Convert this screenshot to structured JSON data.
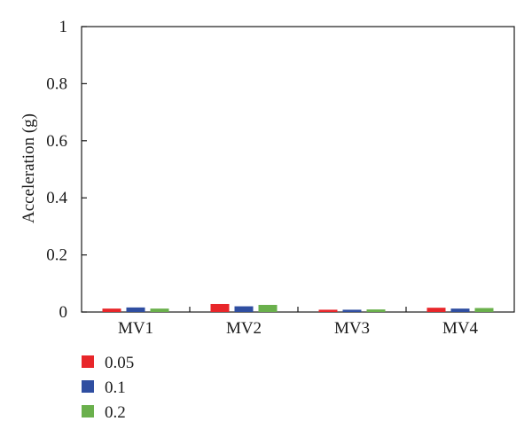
{
  "chart_data": {
    "type": "bar",
    "title": "",
    "xlabel": "",
    "ylabel": "Acceleration (g)",
    "ylim": [
      0,
      1
    ],
    "yticks": [
      0,
      0.2,
      0.4,
      0.6,
      0.8,
      1
    ],
    "ytick_labels": [
      "0",
      "0.2",
      "0.4",
      "0.6",
      "0.8",
      "1"
    ],
    "categories": [
      "MV1",
      "MV2",
      "MV3",
      "MV4"
    ],
    "series": [
      {
        "name": "0.05",
        "color": "#e8262a",
        "values": [
          0.012,
          0.028,
          0.008,
          0.015
        ]
      },
      {
        "name": "0.1",
        "color": "#2f4ea1",
        "values": [
          0.016,
          0.02,
          0.008,
          0.012
        ]
      },
      {
        "name": "0.2",
        "color": "#6ab04c",
        "values": [
          0.012,
          0.025,
          0.009,
          0.014
        ]
      }
    ],
    "grid": false,
    "legend_position": "bottom-left"
  }
}
